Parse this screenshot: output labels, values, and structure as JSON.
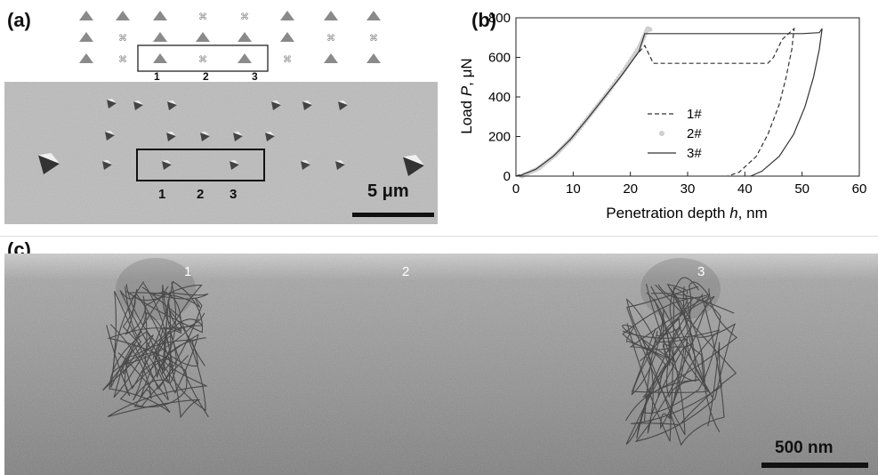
{
  "figure": {
    "panel_a": {
      "label": "(a)",
      "box_numbers": [
        "1",
        "2",
        "3"
      ],
      "sem_numbers": [
        "1",
        "2",
        "3"
      ],
      "scalebar_label": "5 μm"
    },
    "panel_b": {
      "label": "(b)"
    },
    "panel_c": {
      "label": "(c)",
      "indent_labels": [
        "1",
        "2",
        "3"
      ],
      "scalebar_label": "500 nm"
    }
  },
  "chart_data": {
    "type": "line",
    "xlabel_prefix": "Penetration depth ",
    "xlabel_var": "h",
    "xlabel_suffix": ", nm",
    "ylabel_prefix": "Load ",
    "ylabel_var": "P",
    "ylabel_suffix": ", μN",
    "xlim": [
      0,
      60
    ],
    "ylim": [
      0,
      800
    ],
    "xticks": [
      "0",
      "10",
      "20",
      "30",
      "40",
      "50",
      "60"
    ],
    "yticks": [
      "0",
      "200",
      "400",
      "600",
      "800"
    ],
    "legend_position": "center-right",
    "series": [
      {
        "name": "1#",
        "style": "dashed",
        "points": [
          [
            0,
            0
          ],
          [
            3,
            30
          ],
          [
            6,
            90
          ],
          [
            9,
            170
          ],
          [
            12,
            270
          ],
          [
            15,
            380
          ],
          [
            18,
            490
          ],
          [
            21,
            610
          ],
          [
            22.5,
            660
          ],
          [
            24,
            570
          ],
          [
            30,
            570
          ],
          [
            38,
            570
          ],
          [
            44,
            570
          ],
          [
            45,
            600
          ],
          [
            46.5,
            690
          ],
          [
            48,
            730
          ],
          [
            48.6,
            745
          ],
          [
            48.2,
            640
          ],
          [
            47.2,
            500
          ],
          [
            46,
            360
          ],
          [
            44,
            210
          ],
          [
            42,
            100
          ],
          [
            39,
            20
          ],
          [
            37,
            0
          ]
        ]
      },
      {
        "name": "2#",
        "style": "dots",
        "points": [
          [
            1,
            0
          ],
          [
            4,
            40
          ],
          [
            7,
            110
          ],
          [
            10,
            200
          ],
          [
            13,
            310
          ],
          [
            16,
            420
          ],
          [
            19,
            540
          ],
          [
            21.5,
            650
          ],
          [
            23,
            745
          ],
          [
            23.5,
            740
          ]
        ]
      },
      {
        "name": "3#",
        "style": "solid",
        "points": [
          [
            0.5,
            0
          ],
          [
            3.5,
            35
          ],
          [
            6.5,
            100
          ],
          [
            9.5,
            185
          ],
          [
            12.5,
            290
          ],
          [
            15.5,
            400
          ],
          [
            18.5,
            510
          ],
          [
            21.5,
            630
          ],
          [
            22.5,
            720
          ],
          [
            30,
            720
          ],
          [
            40,
            720
          ],
          [
            50,
            720
          ],
          [
            53,
            725
          ],
          [
            53.5,
            745
          ],
          [
            53,
            640
          ],
          [
            52,
            500
          ],
          [
            50.5,
            350
          ],
          [
            48.5,
            210
          ],
          [
            46,
            100
          ],
          [
            43,
            25
          ],
          [
            41,
            0
          ]
        ]
      }
    ]
  }
}
